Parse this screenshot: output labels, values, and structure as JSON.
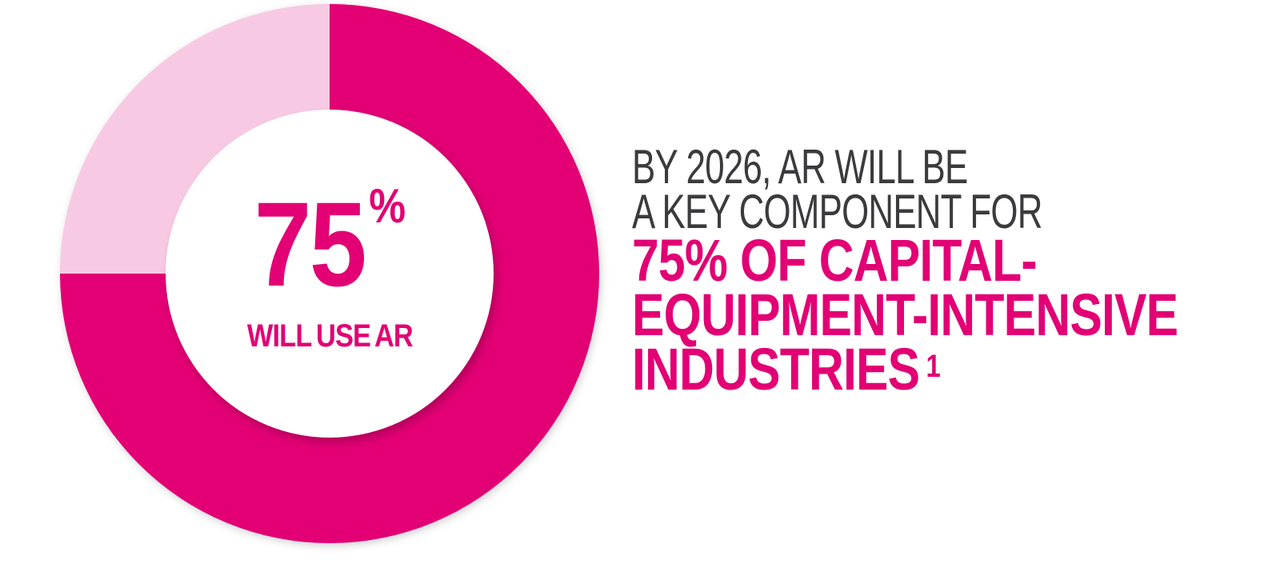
{
  "colors": {
    "magenta": "#E20074",
    "pink": "#F8C9E3",
    "dark": "#3B3B3D",
    "background": "#FFFFFF"
  },
  "chart_data": {
    "type": "pie",
    "style": "donut",
    "direction": "clockwise",
    "start_angle_deg": 0,
    "inner_radius_ratio": 0.61,
    "segments": [
      {
        "label": "WILL USE AR",
        "value": 75,
        "color": "#E20074"
      },
      {
        "label": "",
        "value": 25,
        "color": "#F8C9E3"
      }
    ],
    "center_label": {
      "value": "75",
      "percent_sign": "%",
      "caption": "WILL USE AR"
    }
  },
  "headline": {
    "dark_lines": [
      "BY 2026, AR WILL BE",
      "A KEY COMPONENT FOR"
    ],
    "magenta_lines": [
      "75% OF CAPITAL-",
      "EQUIPMENT-INTENSIVE",
      "INDUSTRIES"
    ],
    "footnote_marker": "1"
  }
}
